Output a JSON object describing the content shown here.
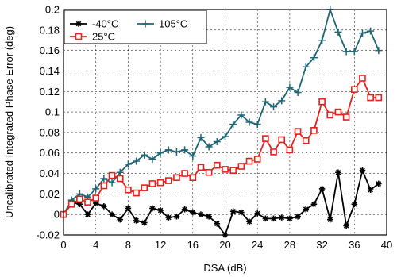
{
  "chart_data": {
    "type": "line",
    "title": "",
    "xlabel": "DSA (dB)",
    "ylabel": "Uncalibrated Integrated Phase Error (deg)",
    "xlim": [
      0,
      40
    ],
    "ylim": [
      -0.02,
      0.2
    ],
    "x_ticks": [
      0,
      4,
      8,
      12,
      16,
      20,
      24,
      28,
      32,
      36,
      40
    ],
    "y_ticks": [
      -0.02,
      0,
      0.02,
      0.04,
      0.06,
      0.08,
      0.1,
      0.12,
      0.14,
      0.16,
      0.18,
      0.2
    ],
    "x_tick_labels": [
      "0",
      "4",
      "8",
      "12",
      "16",
      "20",
      "24",
      "28",
      "32",
      "36",
      "40"
    ],
    "y_tick_labels": [
      "-0.02",
      "0",
      "0.02",
      "0.04",
      "0.06",
      "0.08",
      "0.1",
      "0.12",
      "0.14",
      "0.16",
      "0.18",
      "0.2"
    ],
    "grid": true,
    "legend_position": "top-left",
    "x": [
      0,
      1,
      2,
      3,
      4,
      5,
      6,
      7,
      8,
      9,
      10,
      11,
      12,
      13,
      14,
      15,
      16,
      17,
      18,
      19,
      20,
      21,
      22,
      23,
      24,
      25,
      26,
      27,
      28,
      29,
      30,
      31,
      32,
      33,
      34,
      35,
      36,
      37,
      38,
      39
    ],
    "series": [
      {
        "name": "-40°C",
        "color": "#000000",
        "marker": "asterisk",
        "values": [
          0,
          0.012,
          0.01,
          0,
          0.011,
          0.008,
          0,
          -0.005,
          0.006,
          -0.006,
          -0.008,
          0.006,
          0.004,
          -0.003,
          -0.002,
          0.005,
          0.002,
          0,
          -0.002,
          -0.009,
          -0.02,
          0.003,
          0.002,
          -0.007,
          0.001,
          -0.004,
          -0.004,
          -0.003,
          -0.004,
          -0.002,
          0.005,
          0.01,
          0.025,
          -0.005,
          0.041,
          -0.011,
          0.01,
          0.043,
          0.024,
          0.03
        ]
      },
      {
        "name": "105°C",
        "color": "#1f6674",
        "marker": "plus",
        "values": [
          0,
          0.014,
          0.02,
          0.017,
          0.025,
          0.035,
          0.031,
          0.041,
          0.049,
          0.052,
          0.058,
          0.054,
          0.06,
          0.063,
          0.061,
          0.063,
          0.057,
          0.075,
          0.066,
          0.071,
          0.076,
          0.088,
          0.097,
          0.09,
          0.088,
          0.11,
          0.105,
          0.111,
          0.124,
          0.119,
          0.144,
          0.153,
          0.17,
          0.2,
          0.178,
          0.159,
          0.159,
          0.177,
          0.179,
          0.16
        ]
      },
      {
        "name": "25°C",
        "color": "#e8201c",
        "marker": "square",
        "values": [
          0,
          0.01,
          0.015,
          0.012,
          0.016,
          0.028,
          0.038,
          0.035,
          0.024,
          0.021,
          0.026,
          0.03,
          0.031,
          0.033,
          0.036,
          0.04,
          0.036,
          0.046,
          0.041,
          0.048,
          0.044,
          0.043,
          0.047,
          0.052,
          0.054,
          0.074,
          0.061,
          0.073,
          0.063,
          0.081,
          0.072,
          0.082,
          0.11,
          0.097,
          0.1,
          0.095,
          0.122,
          0.133,
          0.114,
          0.114
        ]
      }
    ]
  }
}
